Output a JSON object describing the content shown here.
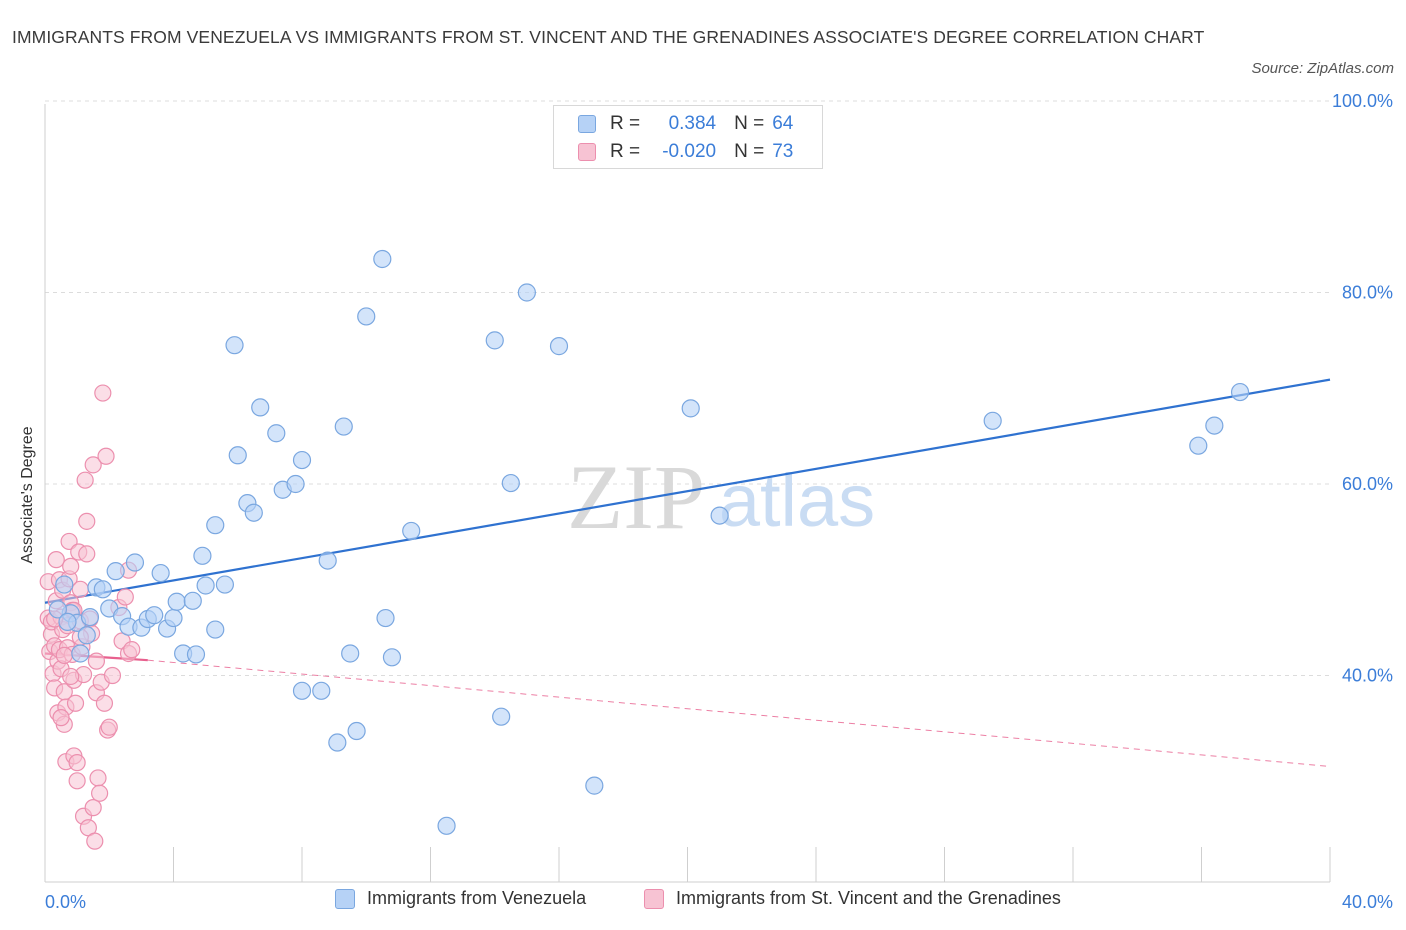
{
  "header": {
    "title": "IMMIGRANTS FROM VENEZUELA VS IMMIGRANTS FROM ST. VINCENT AND THE GRENADINES ASSOCIATE'S DEGREE CORRELATION CHART",
    "source": "Source: ZipAtlas.com"
  },
  "watermark": {
    "zip": "ZIP",
    "atlas": "atlas"
  },
  "legend": {
    "rows": [
      {
        "r_label": "R =",
        "r_value": "0.384",
        "n_label": "N =",
        "n_value": "64"
      },
      {
        "r_label": "R =",
        "r_value": "-0.020",
        "n_label": "N =",
        "n_value": "73"
      }
    ]
  },
  "colors": {
    "venezuela_fill": "#b6d2f6",
    "venezuela_stroke": "#7aa7e0",
    "venezuela_line": "#2f72d0",
    "svg_fill": "#f7c3d3",
    "svg_stroke": "#ec8fae",
    "svg_line": "#e8608e",
    "grid": "#dcdcdc",
    "axis_text": "#3b7dd8"
  },
  "chart_data": {
    "type": "scatter",
    "title": "IMMIGRANTS FROM VENEZUELA VS IMMIGRANTS FROM ST. VINCENT AND THE GRENADINES ASSOCIATE'S DEGREE CORRELATION CHART",
    "xlabel": "",
    "ylabel": "Associate's Degree",
    "xlim": [
      0,
      40
    ],
    "ylim": [
      20,
      100
    ],
    "x_tick_labels": [
      "0.0%",
      "40.0%"
    ],
    "y_tick_labels": [
      "40.0%",
      "60.0%",
      "80.0%",
      "100.0%"
    ],
    "y_ticks": [
      40,
      60,
      80,
      100
    ],
    "grid": true,
    "legend_position": "bottom",
    "series": [
      {
        "name": "Immigrants from Venezuela",
        "trend": {
          "x": [
            0,
            40
          ],
          "y": [
            47.6,
            70.9
          ],
          "style": "solid"
        },
        "points": [
          [
            0.6,
            49.5
          ],
          [
            0.8,
            46.5
          ],
          [
            1.0,
            45.5
          ],
          [
            1.3,
            44.2
          ],
          [
            1.6,
            49.2
          ],
          [
            1.8,
            49.0
          ],
          [
            2.0,
            47.0
          ],
          [
            2.2,
            50.9
          ],
          [
            2.4,
            46.2
          ],
          [
            2.6,
            45.1
          ],
          [
            2.8,
            51.8
          ],
          [
            3.0,
            45.0
          ],
          [
            3.2,
            45.9
          ],
          [
            3.4,
            46.3
          ],
          [
            3.6,
            50.7
          ],
          [
            3.8,
            44.9
          ],
          [
            4.0,
            46.0
          ],
          [
            4.1,
            47.7
          ],
          [
            4.3,
            42.3
          ],
          [
            4.6,
            47.8
          ],
          [
            4.7,
            42.2
          ],
          [
            5.0,
            49.4
          ],
          [
            5.3,
            44.8
          ],
          [
            5.6,
            49.5
          ],
          [
            4.9,
            52.5
          ],
          [
            5.3,
            55.7
          ],
          [
            5.9,
            74.5
          ],
          [
            6.0,
            63.0
          ],
          [
            6.3,
            58.0
          ],
          [
            6.5,
            57.0
          ],
          [
            6.7,
            68.0
          ],
          [
            7.2,
            65.3
          ],
          [
            7.4,
            59.4
          ],
          [
            7.8,
            60.0
          ],
          [
            8.0,
            62.5
          ],
          [
            8.0,
            38.4
          ],
          [
            8.6,
            38.4
          ],
          [
            8.8,
            52.0
          ],
          [
            9.1,
            33.0
          ],
          [
            9.3,
            66.0
          ],
          [
            9.5,
            42.3
          ],
          [
            9.7,
            34.2
          ],
          [
            10.0,
            77.5
          ],
          [
            10.5,
            83.5
          ],
          [
            10.6,
            46.0
          ],
          [
            10.8,
            41.9
          ],
          [
            11.4,
            55.1
          ],
          [
            12.5,
            24.3
          ],
          [
            14.0,
            75.0
          ],
          [
            14.2,
            35.7
          ],
          [
            14.5,
            60.1
          ],
          [
            15.0,
            80.0
          ],
          [
            16.0,
            74.4
          ],
          [
            17.1,
            28.5
          ],
          [
            20.1,
            67.9
          ],
          [
            21.0,
            56.7
          ],
          [
            29.5,
            66.6
          ],
          [
            35.9,
            64.0
          ],
          [
            36.4,
            66.1
          ],
          [
            37.2,
            69.6
          ],
          [
            0.4,
            46.9
          ],
          [
            1.4,
            46.1
          ],
          [
            0.7,
            45.6
          ],
          [
            1.1,
            42.3
          ]
        ]
      },
      {
        "name": "Immigrants from St. Vincent and the Grenadines",
        "trend": {
          "x": [
            0,
            3.2
          ],
          "y": [
            42.3,
            41.6
          ],
          "style": "solid",
          "dashed_extension_to": [
            40,
            30.5
          ]
        },
        "points": [
          [
            0.1,
            49.8
          ],
          [
            0.1,
            46.0
          ],
          [
            0.15,
            42.5
          ],
          [
            0.2,
            44.3
          ],
          [
            0.2,
            45.6
          ],
          [
            0.25,
            40.2
          ],
          [
            0.3,
            43.1
          ],
          [
            0.3,
            38.7
          ],
          [
            0.35,
            52.1
          ],
          [
            0.35,
            47.8
          ],
          [
            0.4,
            41.5
          ],
          [
            0.4,
            36.1
          ],
          [
            0.45,
            42.7
          ],
          [
            0.45,
            50.0
          ],
          [
            0.5,
            46.1
          ],
          [
            0.5,
            40.7
          ],
          [
            0.55,
            44.8
          ],
          [
            0.55,
            48.9
          ],
          [
            0.6,
            38.3
          ],
          [
            0.6,
            34.9
          ],
          [
            0.65,
            36.7
          ],
          [
            0.65,
            31.0
          ],
          [
            0.7,
            42.9
          ],
          [
            0.7,
            45.2
          ],
          [
            0.75,
            54.0
          ],
          [
            0.75,
            50.1
          ],
          [
            0.8,
            51.4
          ],
          [
            0.8,
            47.6
          ],
          [
            0.85,
            46.8
          ],
          [
            0.85,
            42.2
          ],
          [
            0.9,
            39.5
          ],
          [
            0.9,
            31.6
          ],
          [
            0.95,
            37.1
          ],
          [
            1.0,
            30.9
          ],
          [
            1.0,
            29.0
          ],
          [
            1.05,
            52.9
          ],
          [
            1.1,
            49.0
          ],
          [
            1.1,
            45.7
          ],
          [
            1.15,
            43.0
          ],
          [
            1.2,
            25.3
          ],
          [
            1.2,
            40.1
          ],
          [
            1.25,
            60.4
          ],
          [
            1.3,
            56.1
          ],
          [
            1.3,
            52.7
          ],
          [
            1.35,
            24.1
          ],
          [
            1.4,
            45.9
          ],
          [
            1.45,
            44.4
          ],
          [
            1.5,
            26.2
          ],
          [
            1.5,
            62.0
          ],
          [
            1.55,
            22.7
          ],
          [
            1.6,
            41.5
          ],
          [
            1.6,
            38.2
          ],
          [
            1.65,
            29.3
          ],
          [
            1.7,
            27.7
          ],
          [
            1.75,
            39.3
          ],
          [
            1.8,
            69.5
          ],
          [
            1.85,
            37.1
          ],
          [
            1.9,
            62.9
          ],
          [
            1.95,
            34.3
          ],
          [
            2.0,
            34.6
          ],
          [
            2.1,
            40.0
          ],
          [
            2.3,
            47.1
          ],
          [
            2.4,
            43.6
          ],
          [
            2.5,
            48.2
          ],
          [
            2.6,
            42.3
          ],
          [
            2.6,
            51.0
          ],
          [
            2.7,
            42.7
          ],
          [
            0.9,
            46.8
          ],
          [
            0.6,
            42.1
          ],
          [
            0.8,
            39.9
          ],
          [
            1.1,
            44.0
          ],
          [
            0.3,
            45.9
          ],
          [
            0.5,
            35.6
          ]
        ]
      }
    ]
  },
  "bottom_legend": {
    "venezuela": "Immigrants from Venezuela",
    "svg": "Immigrants from St. Vincent and the Grenadines"
  }
}
